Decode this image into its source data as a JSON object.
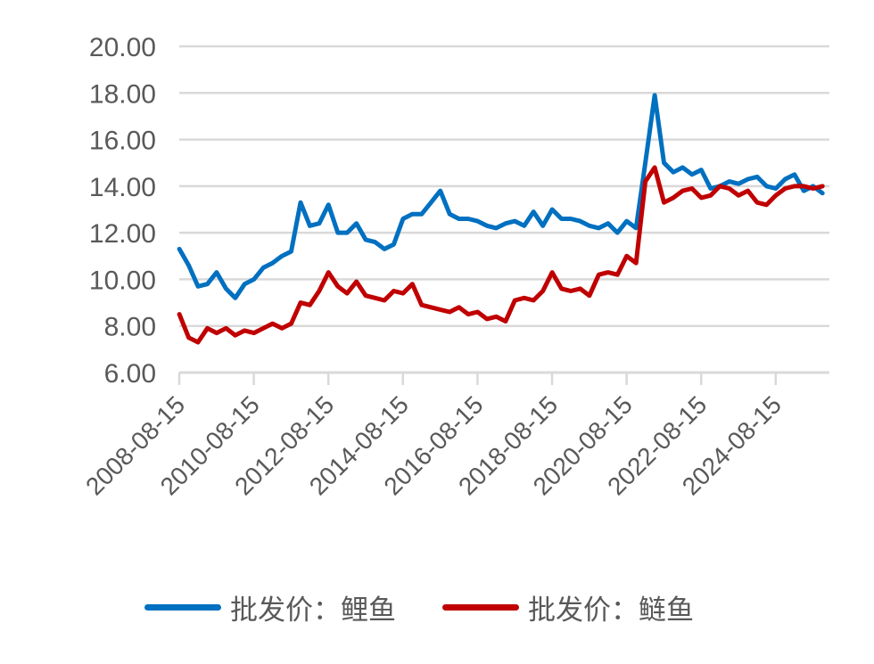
{
  "chart_data": {
    "type": "line",
    "title": "",
    "xlabel": "",
    "ylabel": "",
    "ylim": [
      6,
      20
    ],
    "yticks": [
      "6.00",
      "8.00",
      "10.00",
      "12.00",
      "14.00",
      "16.00",
      "18.00",
      "20.00"
    ],
    "xticks": [
      "2008-08-15",
      "2010-08-15",
      "2012-08-15",
      "2014-08-15",
      "2016-08-15",
      "2018-08-15",
      "2020-08-15",
      "2022-08-15",
      "2024-08-15"
    ],
    "x_range": [
      "2008-08-15",
      "2026-02-01"
    ],
    "grid": "horizontal",
    "legend_position": "bottom",
    "x": [
      "2008-08",
      "2008-11",
      "2009-02",
      "2009-05",
      "2009-08",
      "2009-11",
      "2010-02",
      "2010-05",
      "2010-08",
      "2010-11",
      "2011-02",
      "2011-05",
      "2011-08",
      "2011-11",
      "2012-02",
      "2012-05",
      "2012-08",
      "2012-11",
      "2013-02",
      "2013-05",
      "2013-08",
      "2013-11",
      "2014-02",
      "2014-05",
      "2014-08",
      "2014-11",
      "2015-02",
      "2015-05",
      "2015-08",
      "2015-11",
      "2016-02",
      "2016-05",
      "2016-08",
      "2016-11",
      "2017-02",
      "2017-05",
      "2017-08",
      "2017-11",
      "2018-02",
      "2018-05",
      "2018-08",
      "2018-11",
      "2019-02",
      "2019-05",
      "2019-08",
      "2019-11",
      "2020-02",
      "2020-05",
      "2020-08",
      "2020-11",
      "2021-02",
      "2021-05",
      "2021-08",
      "2021-11",
      "2022-02",
      "2022-05",
      "2022-08",
      "2022-11",
      "2023-02",
      "2023-05",
      "2023-08",
      "2023-11",
      "2024-02",
      "2024-05",
      "2024-08",
      "2024-11",
      "2025-02",
      "2025-05",
      "2025-08",
      "2025-11"
    ],
    "series": [
      {
        "name": "批发价：鲤鱼",
        "color": "#0070C0",
        "values": [
          11.3,
          10.6,
          9.7,
          9.8,
          10.3,
          9.6,
          9.2,
          9.8,
          10.0,
          10.5,
          10.7,
          11.0,
          11.2,
          13.3,
          12.3,
          12.4,
          13.2,
          12.0,
          12.0,
          12.4,
          11.7,
          11.6,
          11.3,
          11.5,
          12.6,
          12.8,
          12.8,
          13.3,
          13.8,
          12.8,
          12.6,
          12.6,
          12.5,
          12.3,
          12.2,
          12.4,
          12.5,
          12.3,
          12.9,
          12.3,
          13.0,
          12.6,
          12.6,
          12.5,
          12.3,
          12.2,
          12.4,
          12.0,
          12.5,
          12.2,
          15.0,
          17.9,
          15.0,
          14.6,
          14.8,
          14.5,
          14.7,
          13.9,
          14.0,
          14.2,
          14.1,
          14.3,
          14.4,
          14.0,
          13.9,
          14.3,
          14.5,
          13.8,
          14.0,
          13.7
        ]
      },
      {
        "name": "批发价：鲢鱼",
        "color": "#C00000",
        "values": [
          8.5,
          7.5,
          7.3,
          7.9,
          7.7,
          7.9,
          7.6,
          7.8,
          7.7,
          7.9,
          8.1,
          7.9,
          8.1,
          9.0,
          8.9,
          9.5,
          10.3,
          9.7,
          9.4,
          9.9,
          9.3,
          9.2,
          9.1,
          9.5,
          9.4,
          9.8,
          8.9,
          8.8,
          8.7,
          8.6,
          8.8,
          8.5,
          8.6,
          8.3,
          8.4,
          8.2,
          9.1,
          9.2,
          9.1,
          9.5,
          10.3,
          9.6,
          9.5,
          9.6,
          9.3,
          10.2,
          10.3,
          10.2,
          11.0,
          10.7,
          14.2,
          14.8,
          13.3,
          13.5,
          13.8,
          13.9,
          13.5,
          13.6,
          14.0,
          13.9,
          13.6,
          13.8,
          13.3,
          13.2,
          13.6,
          13.9,
          14.0,
          14.0,
          13.9,
          14.0
        ]
      }
    ]
  },
  "legend": {
    "items": [
      {
        "label": "批发价：鲤鱼",
        "color": "#0070C0"
      },
      {
        "label": "批发价：鲢鱼",
        "color": "#C00000"
      }
    ]
  },
  "style": {
    "grid_color": "#D9D9D9",
    "text_color": "#595959"
  }
}
